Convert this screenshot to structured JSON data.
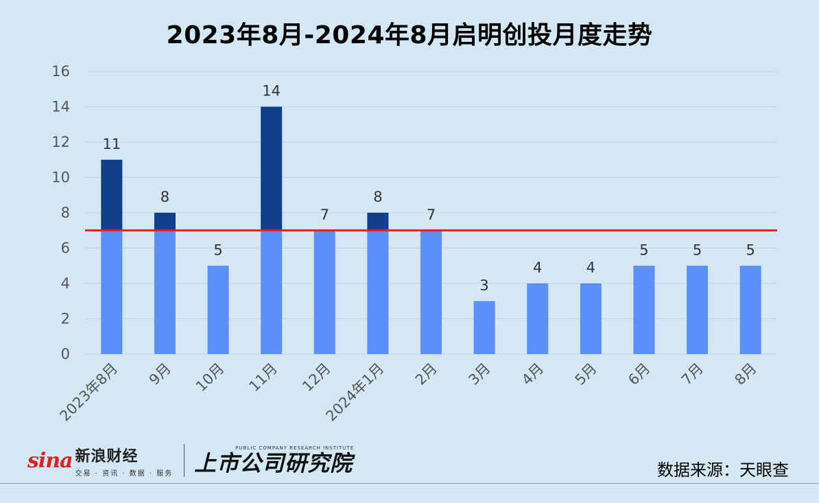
{
  "title": "2023年8月-2024年8月启明创投月度走势",
  "source": "数据来源：天眼查",
  "branding": {
    "sina_logo": "sina",
    "sina_name": "新浪财经",
    "sina_sub": "交易 · 资讯 · 数据 · 服务",
    "research_en": "PUBLIC COMPANY RESEARCH INSTITUTE",
    "research_cn": "上市公司研究院"
  },
  "colors": {
    "background": "#d4e7f5",
    "bar_base": "#5b8ff9",
    "bar_above": "#123f8c",
    "reference_line": "#e5201e",
    "grid": "#c3d3df"
  },
  "chart_data": {
    "type": "bar",
    "title": "2023年8月-2024年8月启明创投月度走势",
    "categories": [
      "2023年8月",
      "9月",
      "10月",
      "11月",
      "12月",
      "2024年1月",
      "2月",
      "3月",
      "4月",
      "5月",
      "6月",
      "7月",
      "8月"
    ],
    "values": [
      11,
      8,
      5,
      14,
      7,
      8,
      7,
      3,
      4,
      4,
      5,
      5,
      5
    ],
    "ylim": [
      0,
      16
    ],
    "yticks": [
      0,
      2,
      4,
      6,
      8,
      10,
      12,
      14,
      16
    ],
    "reference_line": 7,
    "grid": true,
    "legend": "none",
    "xlabel": "",
    "ylabel": ""
  }
}
